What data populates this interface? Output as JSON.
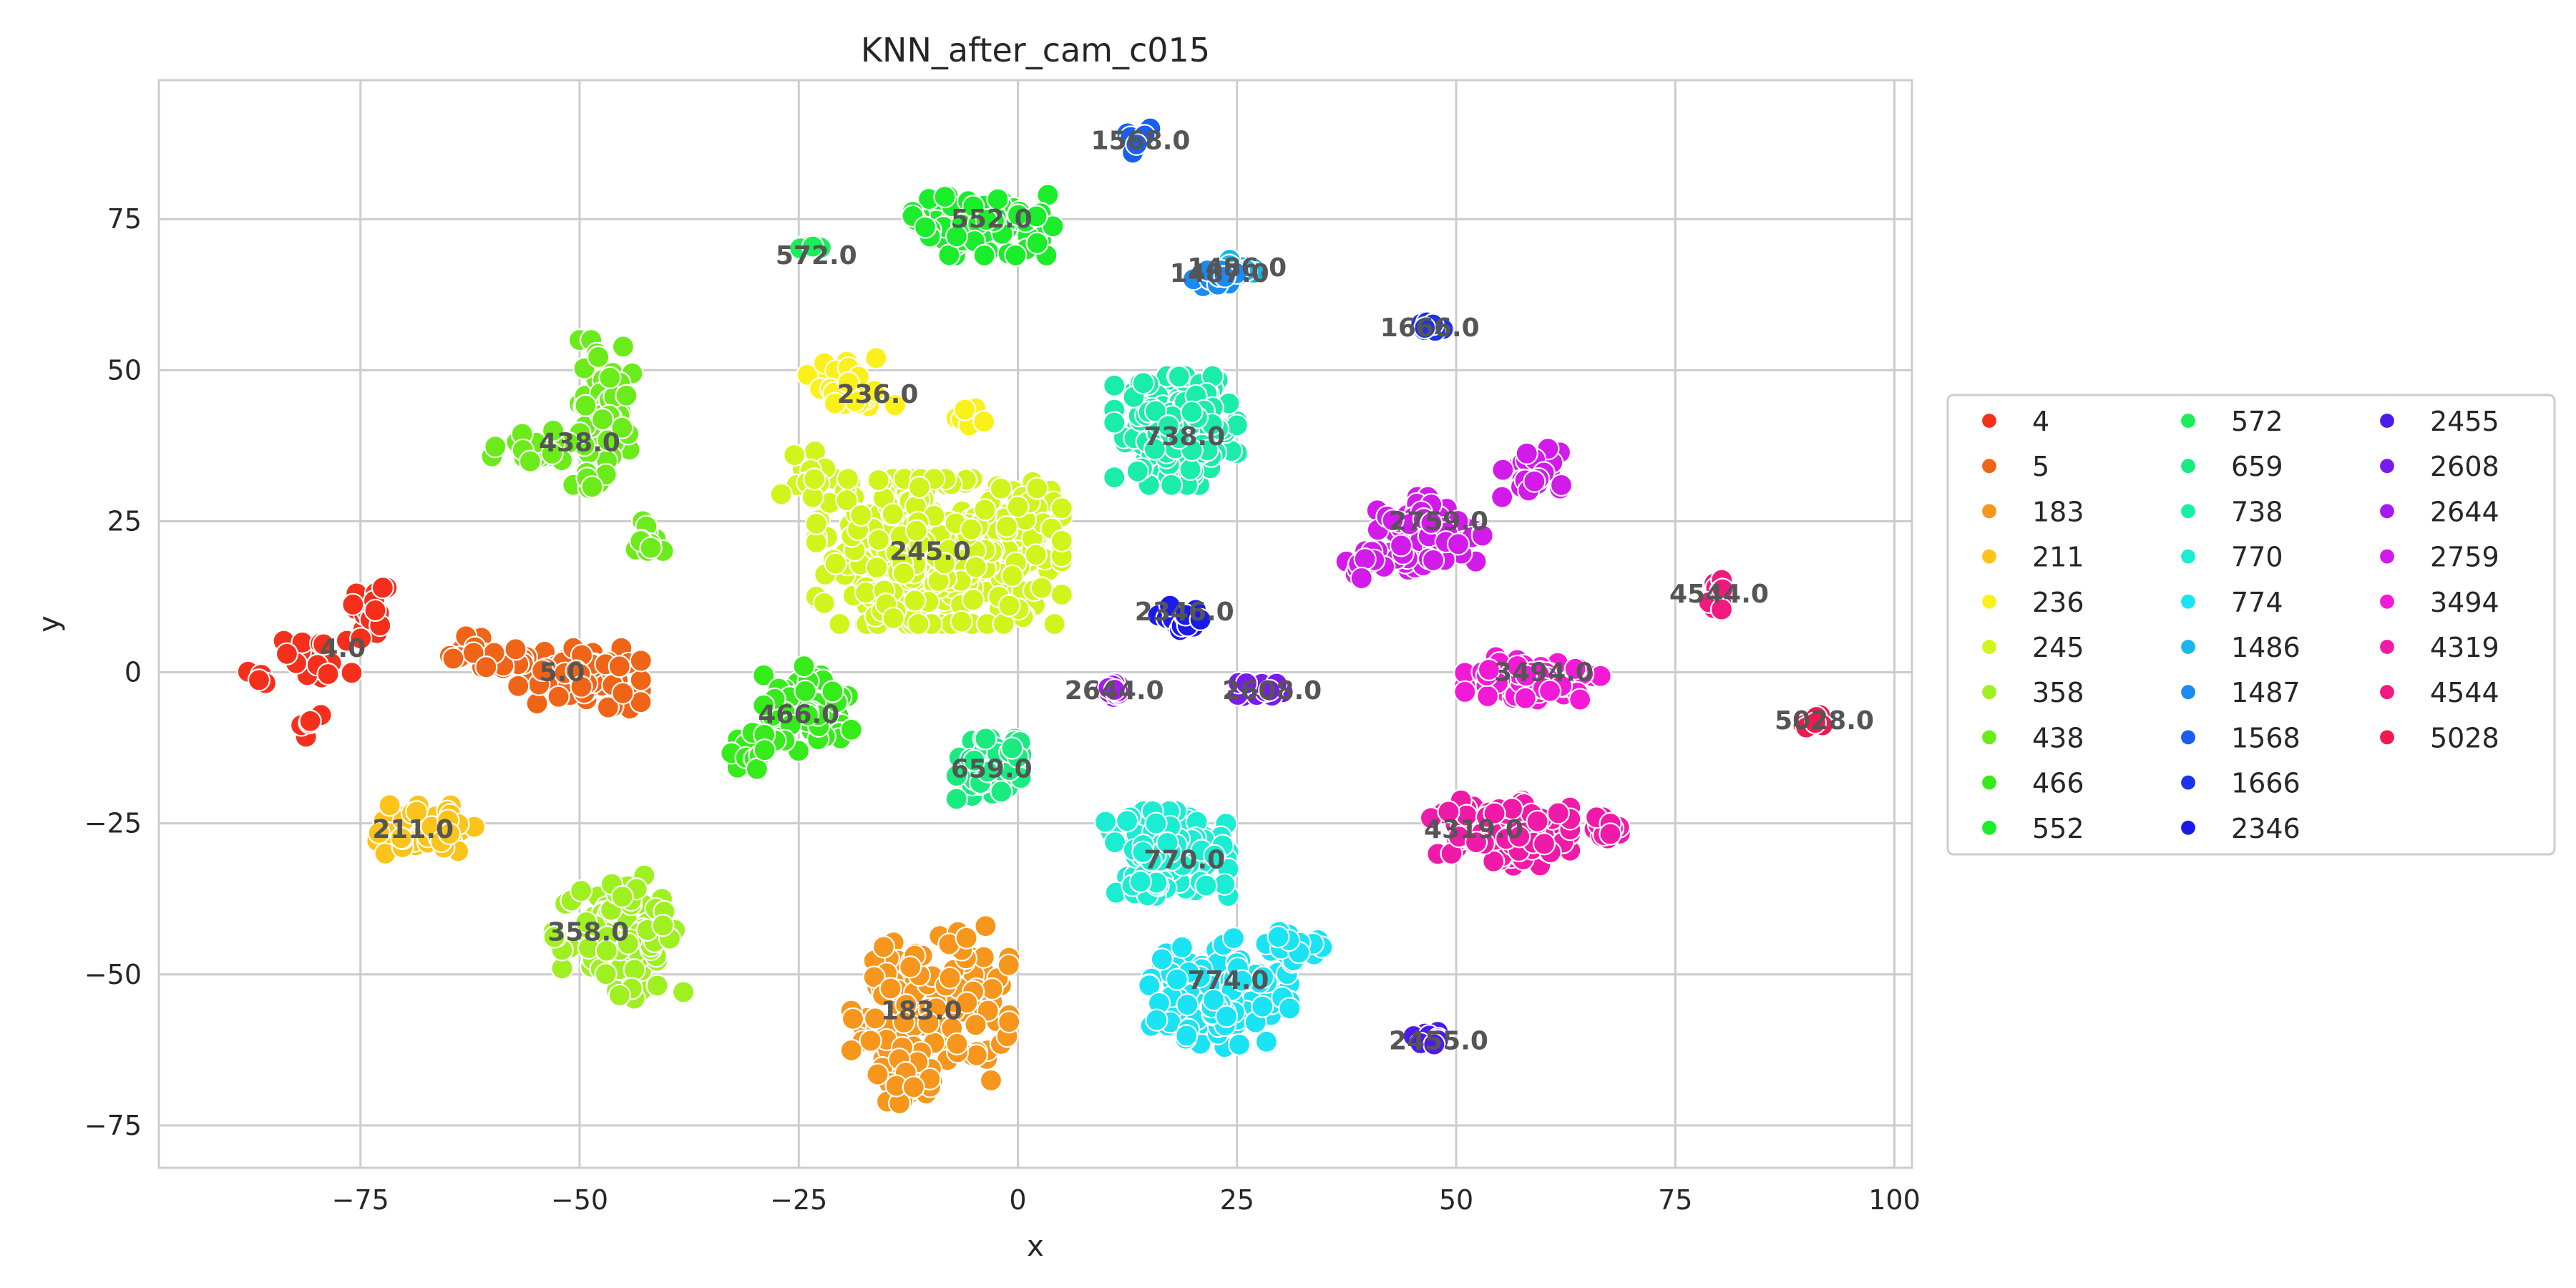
{
  "chart_data": {
    "type": "scatter",
    "title": "KNN_after_cam_c015",
    "xlabel": "x",
    "ylabel": "y",
    "xlim": [
      -98,
      102
    ],
    "ylim": [
      -82,
      98
    ],
    "grid": true,
    "legend_placement": "center-right-outside",
    "x_ticks": [
      -75,
      -50,
      -25,
      0,
      25,
      50,
      75,
      100
    ],
    "y_ticks": [
      -75,
      -50,
      -25,
      0,
      25,
      50,
      75
    ],
    "legend_columns": 3,
    "series": [
      {
        "name": "4",
        "color": "#f4301d",
        "label": "4.0",
        "label_x": -77,
        "label_y": 4,
        "blobs": [
          {
            "cx": -74,
            "cy": 9,
            "rx": 4,
            "ry": 5,
            "n": 18
          },
          {
            "cx": -81,
            "cy": 2,
            "rx": 5,
            "ry": 4,
            "n": 18
          },
          {
            "cx": -86,
            "cy": -1,
            "rx": 2,
            "ry": 1.5,
            "n": 5
          },
          {
            "cx": -81,
            "cy": -9,
            "rx": 1.5,
            "ry": 2,
            "n": 5
          }
        ]
      },
      {
        "name": "5",
        "color": "#f06418",
        "label": "5.0",
        "label_x": -52,
        "label_y": 0,
        "blobs": [
          {
            "cx": -50,
            "cy": -1,
            "rx": 7,
            "ry": 5,
            "n": 60
          },
          {
            "cx": -61,
            "cy": 3,
            "rx": 4,
            "ry": 3,
            "n": 20
          }
        ]
      },
      {
        "name": "183",
        "color": "#f7961c",
        "label": "183.0",
        "label_x": -11,
        "label_y": -56,
        "blobs": [
          {
            "cx": -10,
            "cy": -55,
            "rx": 9,
            "ry": 13,
            "n": 150
          },
          {
            "cx": -13,
            "cy": -69,
            "rx": 3,
            "ry": 3,
            "n": 15
          }
        ]
      },
      {
        "name": "211",
        "color": "#fcc41b",
        "label": "211.0",
        "label_x": -69,
        "label_y": -26,
        "blobs": [
          {
            "cx": -68,
            "cy": -26,
            "rx": 6,
            "ry": 4,
            "n": 45
          }
        ]
      },
      {
        "name": "236",
        "color": "#fbf11a",
        "label": "236.0",
        "label_x": -16,
        "label_y": 46,
        "blobs": [
          {
            "cx": -19,
            "cy": 47,
            "rx": 5,
            "ry": 5,
            "n": 35
          },
          {
            "cx": -5,
            "cy": 42,
            "rx": 2,
            "ry": 2,
            "n": 8
          }
        ]
      },
      {
        "name": "245",
        "color": "#d2f41d",
        "label": "245.0",
        "label_x": -10,
        "label_y": 20,
        "blobs": [
          {
            "cx": -9,
            "cy": 20,
            "rx": 14,
            "ry": 12,
            "n": 420
          },
          {
            "cx": -24,
            "cy": 33,
            "rx": 3,
            "ry": 4,
            "n": 12
          }
        ]
      },
      {
        "name": "358",
        "color": "#9ff020",
        "label": "358.0",
        "label_x": -49,
        "label_y": -43,
        "blobs": [
          {
            "cx": -45,
            "cy": -43,
            "rx": 7,
            "ry": 11,
            "n": 85
          },
          {
            "cx": -53,
            "cy": -43,
            "rx": 1,
            "ry": 1,
            "n": 3
          }
        ]
      },
      {
        "name": "438",
        "color": "#6bec1a",
        "label": "438.0",
        "label_x": -50,
        "label_y": 38,
        "blobs": [
          {
            "cx": -47,
            "cy": 45,
            "rx": 3,
            "ry": 10,
            "n": 55
          },
          {
            "cx": -54,
            "cy": 37,
            "rx": 6,
            "ry": 3,
            "n": 25
          },
          {
            "cx": -42,
            "cy": 22,
            "rx": 3,
            "ry": 3,
            "n": 12
          },
          {
            "cx": -49,
            "cy": 31,
            "rx": 2,
            "ry": 2,
            "n": 8
          }
        ]
      },
      {
        "name": "466",
        "color": "#35ec1a",
        "label": "466.0",
        "label_x": -25,
        "label_y": -7,
        "blobs": [
          {
            "cx": -24,
            "cy": -6,
            "rx": 5,
            "ry": 7,
            "n": 70
          },
          {
            "cx": -30,
            "cy": -13,
            "rx": 3,
            "ry": 3,
            "n": 15
          }
        ]
      },
      {
        "name": "552",
        "color": "#1aee2a",
        "label": "552.0",
        "label_x": -3,
        "label_y": 75,
        "blobs": [
          {
            "cx": -4,
            "cy": 74,
            "rx": 8,
            "ry": 5,
            "n": 90
          }
        ]
      },
      {
        "name": "572",
        "color": "#1aed57",
        "label": "572.0",
        "label_x": -23,
        "label_y": 69,
        "blobs": [
          {
            "cx": -24,
            "cy": 70,
            "rx": 1.5,
            "ry": 1.5,
            "n": 4
          }
        ]
      },
      {
        "name": "659",
        "color": "#1aeb80",
        "label": "659.0",
        "label_x": -3,
        "label_y": -16,
        "blobs": [
          {
            "cx": -3,
            "cy": -16,
            "rx": 4,
            "ry": 5,
            "n": 55
          }
        ]
      },
      {
        "name": "738",
        "color": "#1aedaa",
        "label": "738.0",
        "label_x": 19,
        "label_y": 39,
        "blobs": [
          {
            "cx": 18,
            "cy": 40,
            "rx": 7,
            "ry": 9,
            "n": 160
          }
        ]
      },
      {
        "name": "770",
        "color": "#1aedd2",
        "label": "770.0",
        "label_x": 19,
        "label_y": -31,
        "blobs": [
          {
            "cx": 17,
            "cy": -30,
            "rx": 7,
            "ry": 7,
            "n": 120
          }
        ]
      },
      {
        "name": "774",
        "color": "#1ae3f4",
        "label": "774.0",
        "label_x": 24,
        "label_y": -51,
        "blobs": [
          {
            "cx": 23,
            "cy": -53,
            "rx": 8,
            "ry": 9,
            "n": 110
          },
          {
            "cx": 31,
            "cy": -45,
            "rx": 4,
            "ry": 3,
            "n": 15
          }
        ]
      },
      {
        "name": "1486",
        "color": "#1ab7ec",
        "label": "1486.0",
        "label_x": 25,
        "label_y": 67,
        "blobs": [
          {
            "cx": 25,
            "cy": 67,
            "rx": 3,
            "ry": 1.5,
            "n": 15
          }
        ]
      },
      {
        "name": "1487",
        "color": "#1a8bf2",
        "label": "1487.0",
        "label_x": 23,
        "label_y": 66,
        "blobs": [
          {
            "cx": 23,
            "cy": 65,
            "rx": 3,
            "ry": 1.5,
            "n": 15
          }
        ]
      },
      {
        "name": "1568",
        "color": "#1a5ef0",
        "label": "1568.0",
        "label_x": 14,
        "label_y": 88,
        "blobs": [
          {
            "cx": 14,
            "cy": 88,
            "rx": 1.5,
            "ry": 2,
            "n": 8
          }
        ]
      },
      {
        "name": "1666",
        "color": "#1a33ec",
        "label": "1666.0",
        "label_x": 47,
        "label_y": 57,
        "blobs": [
          {
            "cx": 47,
            "cy": 57,
            "rx": 1.5,
            "ry": 1.5,
            "n": 10
          }
        ]
      },
      {
        "name": "2346",
        "color": "#1a1aeb",
        "label": "2346.0",
        "label_x": 19,
        "label_y": 10,
        "blobs": [
          {
            "cx": 19,
            "cy": 9,
            "rx": 3,
            "ry": 2,
            "n": 15
          }
        ]
      },
      {
        "name": "2455",
        "color": "#4d1aeb",
        "label": "2455.0",
        "label_x": 48,
        "label_y": -61,
        "blobs": [
          {
            "cx": 47,
            "cy": -61,
            "rx": 2,
            "ry": 1.5,
            "n": 10
          }
        ]
      },
      {
        "name": "2608",
        "color": "#7a1aeb",
        "label": "2608.0",
        "label_x": 29,
        "label_y": -3,
        "blobs": [
          {
            "cx": 28,
            "cy": -3,
            "rx": 3,
            "ry": 1.5,
            "n": 15
          }
        ]
      },
      {
        "name": "2644",
        "color": "#a71aeb",
        "label": "2644.0",
        "label_x": 11,
        "label_y": -3,
        "blobs": [
          {
            "cx": 11,
            "cy": -3,
            "rx": 2,
            "ry": 1.5,
            "n": 15
          }
        ]
      },
      {
        "name": "2759",
        "color": "#d21aeb",
        "label": "2759.0",
        "label_x": 48,
        "label_y": 25,
        "blobs": [
          {
            "cx": 47,
            "cy": 23,
            "rx": 6,
            "ry": 6,
            "n": 80
          },
          {
            "cx": 58,
            "cy": 33,
            "rx": 4,
            "ry": 4,
            "n": 25
          },
          {
            "cx": 39,
            "cy": 18,
            "rx": 3,
            "ry": 3,
            "n": 10
          }
        ]
      },
      {
        "name": "3494",
        "color": "#f21ad6",
        "label": "3494.0",
        "label_x": 60,
        "label_y": 0,
        "blobs": [
          {
            "cx": 59,
            "cy": -1,
            "rx": 8,
            "ry": 3.5,
            "n": 65
          }
        ]
      },
      {
        "name": "4319",
        "color": "#f01aa8",
        "label": "4319.0",
        "label_x": 52,
        "label_y": -26,
        "blobs": [
          {
            "cx": 55,
            "cy": -26,
            "rx": 8,
            "ry": 6,
            "n": 110
          },
          {
            "cx": 67,
            "cy": -26,
            "rx": 3,
            "ry": 2,
            "n": 15
          }
        ]
      },
      {
        "name": "4544",
        "color": "#f01a7e",
        "label": "4544.0",
        "label_x": 80,
        "label_y": 13,
        "blobs": [
          {
            "cx": 80,
            "cy": 13,
            "rx": 1.5,
            "ry": 3,
            "n": 12
          }
        ]
      },
      {
        "name": "5028",
        "color": "#f01a50",
        "label": "5028.0",
        "label_x": 92,
        "label_y": -8,
        "blobs": [
          {
            "cx": 91,
            "cy": -8,
            "rx": 1.5,
            "ry": 1.5,
            "n": 8
          }
        ]
      }
    ]
  }
}
